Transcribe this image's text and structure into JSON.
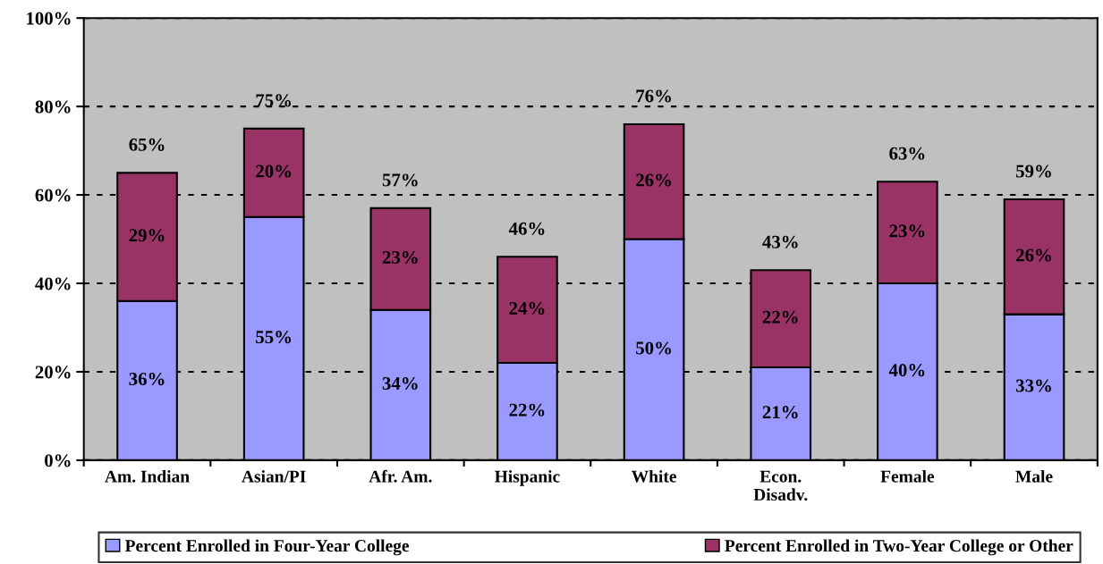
{
  "chart_data": {
    "type": "bar",
    "stacked": true,
    "categories": [
      "Am. Indian",
      "Asian/PI",
      "Afr. Am.",
      "Hispanic",
      "White",
      "Econ.\nDisadv.",
      "Female",
      "Male"
    ],
    "series": [
      {
        "name": "Percent Enrolled in Four-Year College",
        "color": "#9999ff",
        "values": [
          36,
          55,
          34,
          22,
          50,
          21,
          40,
          33
        ],
        "value_labels": [
          "36%",
          "55%",
          "34%",
          "22%",
          "50%",
          "21%",
          "40%",
          "33%"
        ]
      },
      {
        "name": "Percent Enrolled in Two-Year College or Other",
        "color": "#993366",
        "values": [
          29,
          20,
          23,
          24,
          26,
          22,
          23,
          26
        ],
        "value_labels": [
          "29%",
          "20%",
          "23%",
          "24%",
          "26%",
          "22%",
          "23%",
          "26%"
        ]
      }
    ],
    "totals": [
      "65%",
      "75%",
      "57%",
      "46%",
      "76%",
      "43%",
      "63%",
      "59%"
    ],
    "ylim": [
      0,
      100
    ],
    "yticks": [
      {
        "value": 0,
        "label": "0%"
      },
      {
        "value": 20,
        "label": "20%"
      },
      {
        "value": 40,
        "label": "40%"
      },
      {
        "value": 60,
        "label": "60%"
      },
      {
        "value": 80,
        "label": "80%"
      },
      {
        "value": 100,
        "label": "100%"
      }
    ],
    "grid": "y",
    "legend": "bottom"
  }
}
